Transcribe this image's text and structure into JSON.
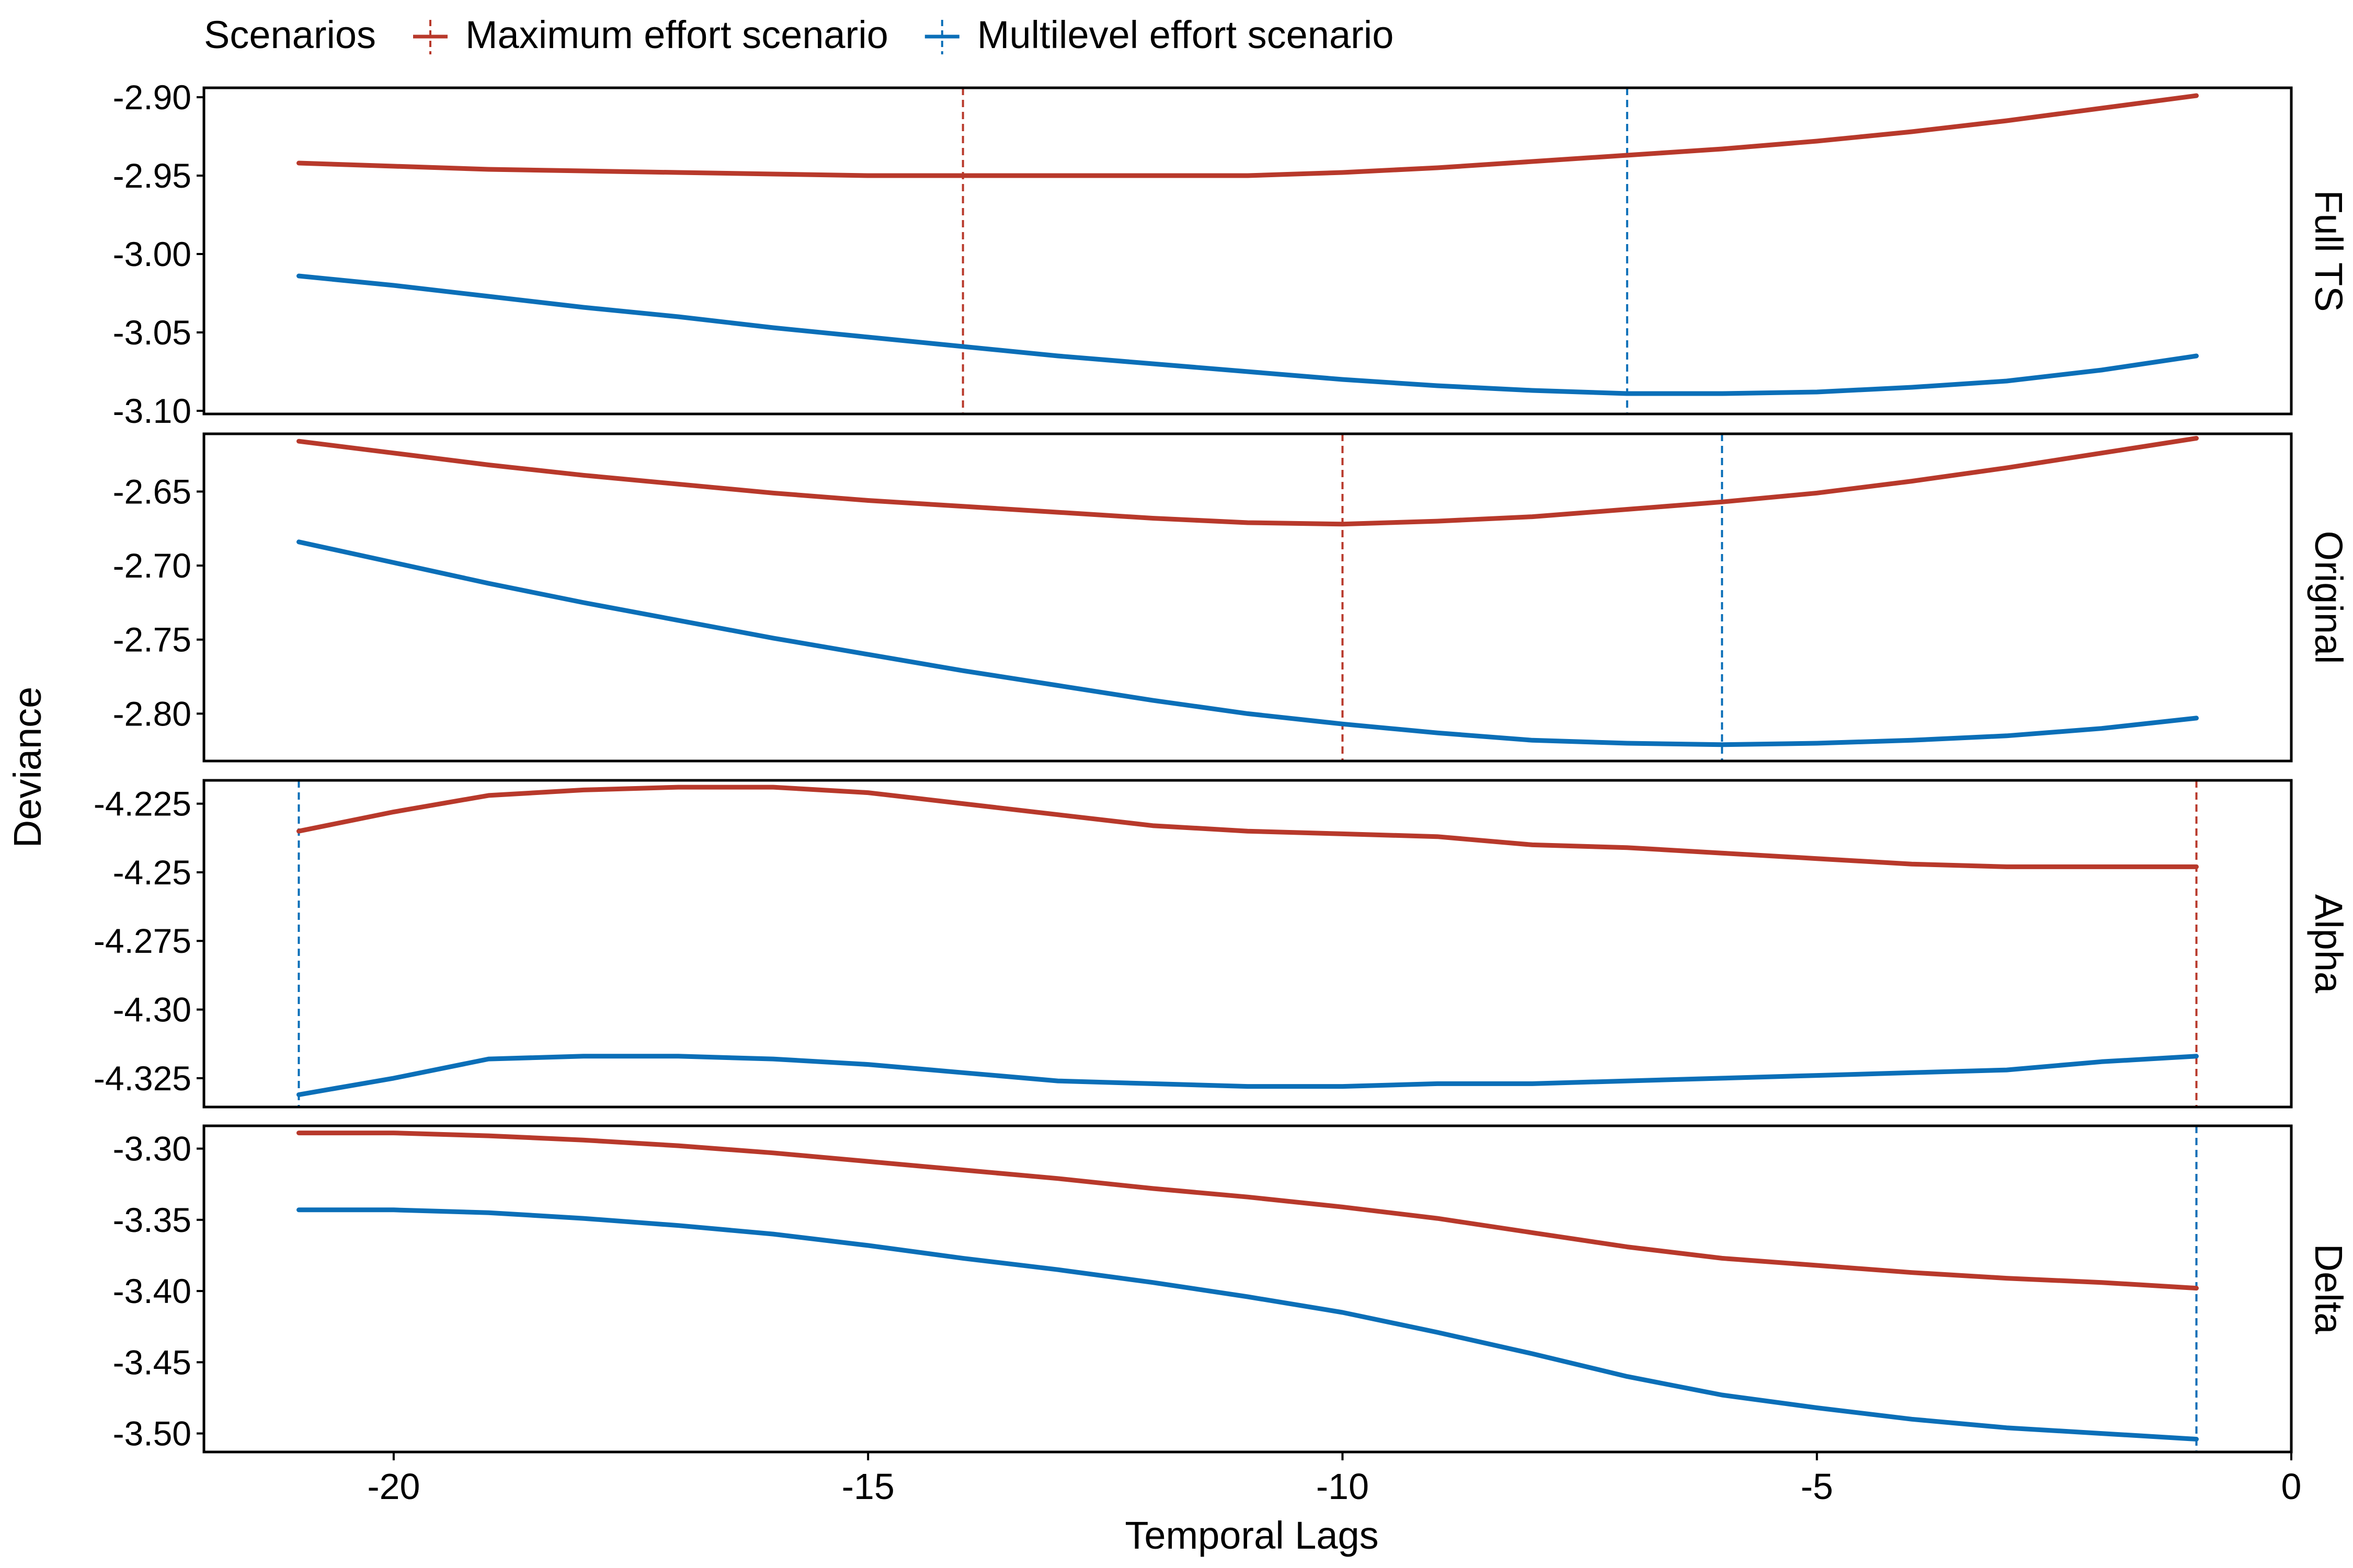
{
  "legend": {
    "title": "Scenarios",
    "items": [
      {
        "label": "Maximum effort scenario",
        "color": "#B8392B"
      },
      {
        "label": "Multilevel effort scenario",
        "color": "#0B6FB8"
      }
    ]
  },
  "chart_data": {
    "type": "line",
    "xlabel": "Temporal Lags",
    "ylabel": "Deviance",
    "xlim": [
      -22.0,
      0
    ],
    "xticks": [
      -20,
      -15,
      -10,
      -5,
      0
    ],
    "x": [
      -21,
      -20,
      -19,
      -18,
      -17,
      -16,
      -15,
      -14,
      -13,
      -12,
      -11,
      -10,
      -9,
      -8,
      -7,
      -6,
      -5,
      -4,
      -3,
      -2,
      -1
    ],
    "grid": false,
    "legend_position": "top",
    "panels": [
      {
        "label": "Full TS",
        "ylim": [
          -3.102,
          -2.894
        ],
        "yticks": [
          -2.9,
          -2.95,
          -3.0,
          -3.05,
          -3.1
        ],
        "series": [
          {
            "name": "Maximum effort scenario",
            "color": "#B8392B",
            "values": [
              -2.942,
              -2.944,
              -2.946,
              -2.947,
              -2.948,
              -2.949,
              -2.95,
              -2.95,
              -2.95,
              -2.95,
              -2.95,
              -2.948,
              -2.945,
              -2.941,
              -2.937,
              -2.933,
              -2.928,
              -2.922,
              -2.915,
              -2.907,
              -2.899
            ],
            "optimum_lag": -14
          },
          {
            "name": "Multilevel effort scenario",
            "color": "#0B6FB8",
            "values": [
              -3.014,
              -3.02,
              -3.027,
              -3.034,
              -3.04,
              -3.047,
              -3.053,
              -3.059,
              -3.065,
              -3.07,
              -3.075,
              -3.08,
              -3.084,
              -3.087,
              -3.089,
              -3.089,
              -3.088,
              -3.085,
              -3.081,
              -3.074,
              -3.065
            ],
            "optimum_lag": -7
          }
        ]
      },
      {
        "label": "Original",
        "ylim": [
          -2.832,
          -2.611
        ],
        "yticks": [
          -2.65,
          -2.7,
          -2.75,
          -2.8
        ],
        "series": [
          {
            "name": "Maximum effort scenario",
            "color": "#B8392B",
            "values": [
              -2.616,
              -2.624,
              -2.632,
              -2.639,
              -2.645,
              -2.651,
              -2.656,
              -2.66,
              -2.664,
              -2.668,
              -2.671,
              -2.672,
              -2.67,
              -2.667,
              -2.662,
              -2.657,
              -2.651,
              -2.643,
              -2.634,
              -2.624,
              -2.614
            ],
            "optimum_lag": -10
          },
          {
            "name": "Multilevel effort scenario",
            "color": "#0B6FB8",
            "values": [
              -2.684,
              -2.698,
              -2.712,
              -2.725,
              -2.737,
              -2.749,
              -2.76,
              -2.771,
              -2.781,
              -2.791,
              -2.8,
              -2.807,
              -2.813,
              -2.818,
              -2.82,
              -2.821,
              -2.82,
              -2.818,
              -2.815,
              -2.81,
              -2.803
            ],
            "optimum_lag": -6
          }
        ]
      },
      {
        "label": "Alpha",
        "ylim": [
          -4.3355,
          -4.2165
        ],
        "yticks": [
          -4.225,
          -4.25,
          -4.275,
          -4.3,
          -4.325
        ],
        "series": [
          {
            "name": "Maximum effort scenario",
            "color": "#B8392B",
            "values": [
              -4.235,
              -4.228,
              -4.222,
              -4.22,
              -4.219,
              -4.219,
              -4.221,
              -4.225,
              -4.229,
              -4.233,
              -4.235,
              -4.236,
              -4.237,
              -4.24,
              -4.241,
              -4.243,
              -4.245,
              -4.247,
              -4.248,
              -4.248,
              -4.248
            ],
            "optimum_lag": -1
          },
          {
            "name": "Multilevel effort scenario",
            "color": "#0B6FB8",
            "values": [
              -4.331,
              -4.325,
              -4.318,
              -4.317,
              -4.317,
              -4.318,
              -4.32,
              -4.323,
              -4.326,
              -4.327,
              -4.328,
              -4.328,
              -4.327,
              -4.327,
              -4.326,
              -4.325,
              -4.324,
              -4.323,
              -4.322,
              -4.319,
              -4.317
            ],
            "optimum_lag": -21
          }
        ]
      },
      {
        "label": "Delta",
        "ylim": [
          -3.513,
          -3.284
        ],
        "yticks": [
          -3.3,
          -3.35,
          -3.4,
          -3.45,
          -3.5
        ],
        "series": [
          {
            "name": "Maximum effort scenario",
            "color": "#B8392B",
            "values": [
              -3.289,
              -3.289,
              -3.291,
              -3.294,
              -3.298,
              -3.303,
              -3.309,
              -3.315,
              -3.321,
              -3.328,
              -3.334,
              -3.341,
              -3.349,
              -3.359,
              -3.369,
              -3.377,
              -3.382,
              -3.387,
              -3.391,
              -3.394,
              -3.398
            ],
            "optimum_lag": -1
          },
          {
            "name": "Multilevel effort scenario",
            "color": "#0B6FB8",
            "values": [
              -3.343,
              -3.343,
              -3.345,
              -3.349,
              -3.354,
              -3.36,
              -3.368,
              -3.377,
              -3.385,
              -3.394,
              -3.404,
              -3.415,
              -3.429,
              -3.444,
              -3.46,
              -3.473,
              -3.482,
              -3.49,
              -3.496,
              -3.5,
              -3.504
            ],
            "optimum_lag": -1
          }
        ]
      }
    ]
  }
}
